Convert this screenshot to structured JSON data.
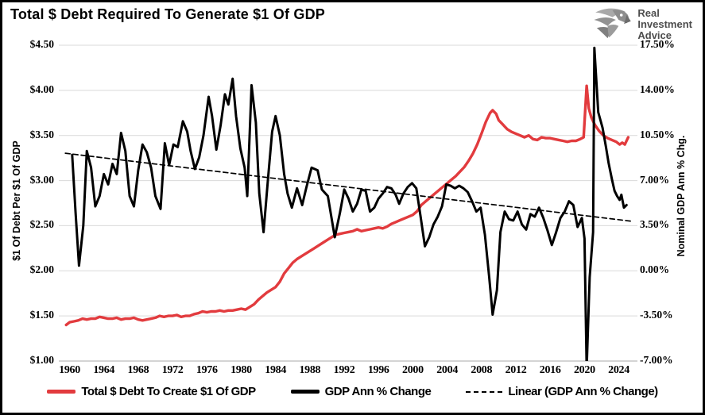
{
  "header": {
    "title": "Total $ Debt Required To Generate $1 Of GDP"
  },
  "logo": {
    "lines": [
      "Real",
      "Investment",
      "Advice"
    ]
  },
  "chart_data": {
    "type": "line",
    "title": "Total $ Debt Required To Generate $1 Of GDP",
    "xlabel": "",
    "grid": "horizontal",
    "legend_position": "bottom",
    "x_axis": {
      "range": [
        1959.3,
        2025.8
      ],
      "tick_years": [
        1960,
        1964,
        1968,
        1972,
        1976,
        1980,
        1984,
        1988,
        1992,
        1996,
        2000,
        2004,
        2008,
        2012,
        2016,
        2020,
        2024
      ],
      "tick_labels": [
        "1960",
        "1964",
        "1968",
        "1972",
        "1976",
        "1980",
        "1984",
        "1988",
        "1992",
        "1996",
        "2000",
        "2004",
        "2008",
        "2012",
        "2016",
        "2020",
        "2024"
      ]
    },
    "left_axis": {
      "label": "$1 Of Debt Per $1 Of GDP",
      "range": [
        1.0,
        4.5
      ],
      "ticks": [
        "$4.50",
        "$4.00",
        "$3.50",
        "$3.00",
        "$2.50",
        "$2.00",
        "$1.50",
        "$1.00"
      ]
    },
    "right_axis": {
      "label": "Nominal GDP Ann % Chg.",
      "range": [
        -7.0,
        17.5
      ],
      "ticks": [
        "17.50%",
        "14.00%",
        "10.50%",
        "7.00%",
        "3.50%",
        "0.00%",
        "-3.50%",
        "-7.00%"
      ]
    },
    "series": [
      {
        "name": "Total $ Debt To Create $1 Of GDP",
        "color": "#e23b3e",
        "axis": "left",
        "width": 3.4,
        "style": "solid",
        "points": [
          [
            1959.6,
            1.4
          ],
          [
            1960.0,
            1.43
          ],
          [
            1960.5,
            1.44
          ],
          [
            1961.0,
            1.45
          ],
          [
            1961.5,
            1.47
          ],
          [
            1962.0,
            1.46
          ],
          [
            1962.5,
            1.47
          ],
          [
            1963.0,
            1.47
          ],
          [
            1963.5,
            1.49
          ],
          [
            1964.0,
            1.48
          ],
          [
            1964.5,
            1.47
          ],
          [
            1965.0,
            1.47
          ],
          [
            1965.5,
            1.48
          ],
          [
            1966.0,
            1.46
          ],
          [
            1966.5,
            1.47
          ],
          [
            1967.0,
            1.47
          ],
          [
            1967.5,
            1.48
          ],
          [
            1968.0,
            1.46
          ],
          [
            1968.5,
            1.45
          ],
          [
            1969.0,
            1.46
          ],
          [
            1969.5,
            1.47
          ],
          [
            1970.0,
            1.48
          ],
          [
            1970.5,
            1.5
          ],
          [
            1971.0,
            1.49
          ],
          [
            1971.5,
            1.5
          ],
          [
            1972.0,
            1.5
          ],
          [
            1972.5,
            1.51
          ],
          [
            1973.0,
            1.49
          ],
          [
            1973.5,
            1.5
          ],
          [
            1974.0,
            1.5
          ],
          [
            1974.5,
            1.52
          ],
          [
            1975.0,
            1.53
          ],
          [
            1975.5,
            1.55
          ],
          [
            1976.0,
            1.54
          ],
          [
            1976.5,
            1.55
          ],
          [
            1977.0,
            1.55
          ],
          [
            1977.5,
            1.56
          ],
          [
            1978.0,
            1.55
          ],
          [
            1978.5,
            1.56
          ],
          [
            1979.0,
            1.56
          ],
          [
            1979.5,
            1.57
          ],
          [
            1980.0,
            1.58
          ],
          [
            1980.5,
            1.57
          ],
          [
            1981.0,
            1.6
          ],
          [
            1981.5,
            1.63
          ],
          [
            1982.0,
            1.68
          ],
          [
            1982.5,
            1.72
          ],
          [
            1983.0,
            1.76
          ],
          [
            1983.5,
            1.79
          ],
          [
            1984.0,
            1.82
          ],
          [
            1984.5,
            1.88
          ],
          [
            1985.0,
            1.97
          ],
          [
            1985.5,
            2.03
          ],
          [
            1986.0,
            2.09
          ],
          [
            1986.5,
            2.13
          ],
          [
            1987.0,
            2.16
          ],
          [
            1987.5,
            2.19
          ],
          [
            1988.0,
            2.22
          ],
          [
            1988.5,
            2.25
          ],
          [
            1989.0,
            2.28
          ],
          [
            1989.5,
            2.31
          ],
          [
            1990.0,
            2.34
          ],
          [
            1990.5,
            2.37
          ],
          [
            1991.0,
            2.4
          ],
          [
            1991.5,
            2.41
          ],
          [
            1992.0,
            2.42
          ],
          [
            1992.5,
            2.43
          ],
          [
            1993.0,
            2.44
          ],
          [
            1993.5,
            2.46
          ],
          [
            1994.0,
            2.44
          ],
          [
            1994.5,
            2.45
          ],
          [
            1995.0,
            2.46
          ],
          [
            1995.5,
            2.47
          ],
          [
            1996.0,
            2.48
          ],
          [
            1996.5,
            2.47
          ],
          [
            1997.0,
            2.49
          ],
          [
            1997.5,
            2.52
          ],
          [
            1998.0,
            2.54
          ],
          [
            1998.5,
            2.56
          ],
          [
            1999.0,
            2.58
          ],
          [
            1999.5,
            2.6
          ],
          [
            2000.0,
            2.62
          ],
          [
            2000.5,
            2.66
          ],
          [
            2001.0,
            2.73
          ],
          [
            2001.5,
            2.77
          ],
          [
            2002.0,
            2.81
          ],
          [
            2002.5,
            2.85
          ],
          [
            2003.0,
            2.89
          ],
          [
            2003.5,
            2.93
          ],
          [
            2004.0,
            2.97
          ],
          [
            2004.5,
            3.01
          ],
          [
            2005.0,
            3.05
          ],
          [
            2005.5,
            3.1
          ],
          [
            2006.0,
            3.15
          ],
          [
            2006.5,
            3.22
          ],
          [
            2007.0,
            3.3
          ],
          [
            2007.5,
            3.4
          ],
          [
            2008.0,
            3.52
          ],
          [
            2008.5,
            3.65
          ],
          [
            2009.0,
            3.75
          ],
          [
            2009.3,
            3.78
          ],
          [
            2009.7,
            3.74
          ],
          [
            2010.0,
            3.67
          ],
          [
            2010.5,
            3.62
          ],
          [
            2011.0,
            3.57
          ],
          [
            2011.5,
            3.54
          ],
          [
            2012.0,
            3.52
          ],
          [
            2012.5,
            3.5
          ],
          [
            2013.0,
            3.48
          ],
          [
            2013.5,
            3.5
          ],
          [
            2014.0,
            3.46
          ],
          [
            2014.5,
            3.45
          ],
          [
            2015.0,
            3.48
          ],
          [
            2015.5,
            3.47
          ],
          [
            2016.0,
            3.47
          ],
          [
            2016.5,
            3.46
          ],
          [
            2017.0,
            3.45
          ],
          [
            2017.5,
            3.44
          ],
          [
            2018.0,
            3.43
          ],
          [
            2018.5,
            3.44
          ],
          [
            2019.0,
            3.44
          ],
          [
            2019.5,
            3.46
          ],
          [
            2019.9,
            3.48
          ],
          [
            2020.25,
            4.05
          ],
          [
            2020.5,
            3.8
          ],
          [
            2020.8,
            3.7
          ],
          [
            2021.2,
            3.62
          ],
          [
            2021.7,
            3.55
          ],
          [
            2022.2,
            3.5
          ],
          [
            2022.7,
            3.47
          ],
          [
            2023.2,
            3.45
          ],
          [
            2023.7,
            3.43
          ],
          [
            2024.1,
            3.4
          ],
          [
            2024.4,
            3.42
          ],
          [
            2024.7,
            3.4
          ],
          [
            2025.1,
            3.48
          ]
        ]
      },
      {
        "name": "GDP Ann % Change",
        "color": "#000000",
        "axis": "right",
        "width": 3.0,
        "style": "solid",
        "points": [
          [
            1960.3,
            9.0
          ],
          [
            1960.7,
            4.5
          ],
          [
            1961.1,
            0.4
          ],
          [
            1961.6,
            3.5
          ],
          [
            1962.0,
            9.3
          ],
          [
            1962.5,
            8.0
          ],
          [
            1963.0,
            5.0
          ],
          [
            1963.5,
            5.8
          ],
          [
            1964.0,
            7.5
          ],
          [
            1964.5,
            6.7
          ],
          [
            1965.0,
            8.3
          ],
          [
            1965.5,
            7.5
          ],
          [
            1966.0,
            10.7
          ],
          [
            1966.5,
            9.3
          ],
          [
            1967.0,
            5.8
          ],
          [
            1967.5,
            5.0
          ],
          [
            1968.0,
            7.8
          ],
          [
            1968.5,
            9.8
          ],
          [
            1969.0,
            9.2
          ],
          [
            1969.5,
            8.0
          ],
          [
            1970.0,
            5.8
          ],
          [
            1970.6,
            4.8
          ],
          [
            1971.1,
            9.9
          ],
          [
            1971.6,
            8.2
          ],
          [
            1972.1,
            9.8
          ],
          [
            1972.6,
            9.6
          ],
          [
            1973.2,
            11.6
          ],
          [
            1973.7,
            10.8
          ],
          [
            1974.1,
            9.3
          ],
          [
            1974.6,
            7.9
          ],
          [
            1975.1,
            8.8
          ],
          [
            1975.6,
            10.5
          ],
          [
            1976.2,
            13.5
          ],
          [
            1976.6,
            12.0
          ],
          [
            1977.1,
            9.4
          ],
          [
            1977.6,
            11.3
          ],
          [
            1978.1,
            13.7
          ],
          [
            1978.5,
            12.9
          ],
          [
            1979.0,
            14.9
          ],
          [
            1979.4,
            12.0
          ],
          [
            1979.9,
            9.5
          ],
          [
            1980.4,
            8.0
          ],
          [
            1980.7,
            5.8
          ],
          [
            1981.2,
            14.4
          ],
          [
            1981.7,
            11.5
          ],
          [
            1982.1,
            6.0
          ],
          [
            1982.6,
            3.0
          ],
          [
            1983.1,
            7.0
          ],
          [
            1983.6,
            10.8
          ],
          [
            1984.0,
            12.0
          ],
          [
            1984.5,
            10.5
          ],
          [
            1985.0,
            7.5
          ],
          [
            1985.4,
            6.0
          ],
          [
            1985.9,
            4.9
          ],
          [
            1986.5,
            6.4
          ],
          [
            1987.1,
            5.1
          ],
          [
            1987.6,
            6.5
          ],
          [
            1988.2,
            8.0
          ],
          [
            1988.9,
            7.8
          ],
          [
            1989.4,
            6.3
          ],
          [
            1990.1,
            5.8
          ],
          [
            1990.9,
            2.6
          ],
          [
            1991.5,
            4.5
          ],
          [
            1992.0,
            6.3
          ],
          [
            1992.5,
            5.6
          ],
          [
            1993.0,
            4.6
          ],
          [
            1993.5,
            5.2
          ],
          [
            1994.0,
            6.3
          ],
          [
            1994.5,
            6.2
          ],
          [
            1995.0,
            4.6
          ],
          [
            1995.5,
            4.9
          ],
          [
            1996.0,
            5.6
          ],
          [
            1996.5,
            6.0
          ],
          [
            1997.0,
            6.5
          ],
          [
            1997.5,
            6.4
          ],
          [
            1998.0,
            5.9
          ],
          [
            1998.4,
            5.2
          ],
          [
            1998.9,
            6.0
          ],
          [
            1999.4,
            6.5
          ],
          [
            1999.9,
            6.8
          ],
          [
            2000.4,
            6.4
          ],
          [
            2000.9,
            4.2
          ],
          [
            2001.4,
            1.9
          ],
          [
            2001.9,
            2.6
          ],
          [
            2002.4,
            3.6
          ],
          [
            2002.9,
            4.2
          ],
          [
            2003.4,
            5.0
          ],
          [
            2003.9,
            6.7
          ],
          [
            2004.4,
            6.6
          ],
          [
            2004.9,
            6.4
          ],
          [
            2005.4,
            6.6
          ],
          [
            2005.9,
            6.4
          ],
          [
            2006.4,
            6.1
          ],
          [
            2006.9,
            5.4
          ],
          [
            2007.4,
            4.6
          ],
          [
            2007.9,
            4.9
          ],
          [
            2008.4,
            2.8
          ],
          [
            2008.9,
            -0.5
          ],
          [
            2009.3,
            -3.4
          ],
          [
            2009.8,
            -1.5
          ],
          [
            2010.2,
            3.0
          ],
          [
            2010.7,
            4.6
          ],
          [
            2011.2,
            4.0
          ],
          [
            2011.7,
            3.9
          ],
          [
            2012.2,
            4.6
          ],
          [
            2012.7,
            3.6
          ],
          [
            2013.2,
            3.2
          ],
          [
            2013.7,
            4.4
          ],
          [
            2014.2,
            4.2
          ],
          [
            2014.7,
            4.9
          ],
          [
            2015.2,
            4.1
          ],
          [
            2015.7,
            3.1
          ],
          [
            2016.2,
            2.0
          ],
          [
            2016.7,
            3.0
          ],
          [
            2017.2,
            4.1
          ],
          [
            2017.7,
            4.6
          ],
          [
            2018.2,
            5.4
          ],
          [
            2018.7,
            5.1
          ],
          [
            2019.2,
            3.4
          ],
          [
            2019.7,
            4.1
          ],
          [
            2020.0,
            2.5
          ],
          [
            2020.25,
            -7.6
          ],
          [
            2020.6,
            -0.5
          ],
          [
            2021.0,
            3.0
          ],
          [
            2021.15,
            17.3
          ],
          [
            2021.6,
            12.3
          ],
          [
            2022.1,
            11.1
          ],
          [
            2022.5,
            9.6
          ],
          [
            2022.8,
            8.4
          ],
          [
            2023.2,
            7.1
          ],
          [
            2023.5,
            6.2
          ],
          [
            2023.8,
            5.8
          ],
          [
            2024.1,
            5.5
          ],
          [
            2024.3,
            5.9
          ],
          [
            2024.6,
            4.9
          ],
          [
            2024.9,
            5.1
          ]
        ]
      },
      {
        "name": "Linear (GDP Ann % Change)",
        "color": "#000000",
        "axis": "right",
        "width": 1.7,
        "style": "dashed",
        "points": [
          [
            1959.5,
            9.12
          ],
          [
            2025.4,
            3.85
          ]
        ]
      }
    ]
  }
}
